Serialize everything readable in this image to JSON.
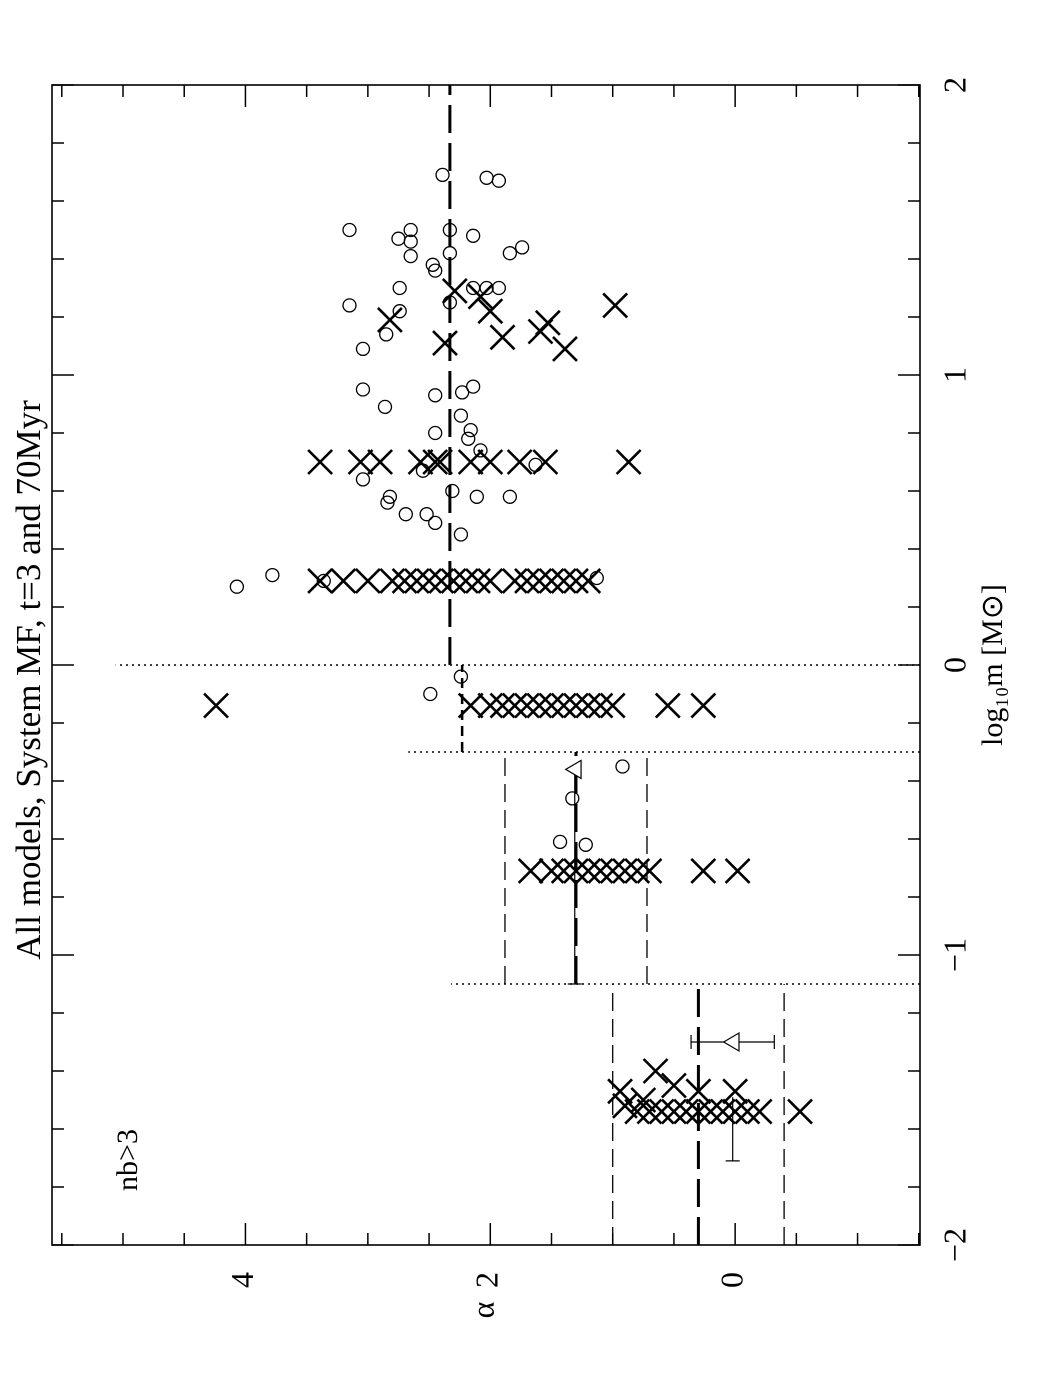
{
  "chart_data": {
    "type": "scatter",
    "title": "All models, System MF, t=3 and 70Myr",
    "x_label": "log₁₀m [M⊙]",
    "y_label": "α",
    "annotation": "nb>3",
    "rotated": true,
    "xlim": [
      -2,
      2
    ],
    "ylim": [
      -1.51,
      5.58
    ],
    "xticks": [
      {
        "value": -2,
        "label": "−2"
      },
      {
        "value": -1,
        "label": "−1"
      },
      0,
      1,
      2
    ],
    "yticks": [
      0,
      2,
      4
    ],
    "xminorticks": [
      -1.8,
      -1.6,
      -1.4,
      -1.2,
      -0.8,
      -0.6,
      -0.4,
      -0.2,
      0.2,
      0.4,
      0.6,
      0.8,
      1.2,
      1.4,
      1.6,
      1.8
    ],
    "yminorticks": [
      -1.5,
      -1,
      -0.5,
      0.5,
      1,
      1.5,
      2.5,
      3,
      3.5,
      4.5,
      5,
      5.5
    ],
    "series": [
      {
        "marker": "x",
        "color": "#000000",
        "x": [
          -1.47,
          -1.4,
          -1.45,
          -1.47,
          -1.47,
          -1.52,
          -1.5,
          -1.54,
          -1.54,
          -1.54,
          -1.54,
          -1.54,
          -1.54,
          -1.54,
          -1.54,
          -1.54,
          -1.54,
          -1.54,
          -1.54,
          -0.71,
          -0.71,
          -0.71,
          -0.71,
          -0.71,
          -0.71,
          -0.71,
          -0.71,
          -0.71,
          -0.71,
          -0.71,
          -0.71,
          -0.14,
          -0.14,
          -0.14,
          -0.14,
          -0.14,
          -0.14,
          -0.14,
          -0.14,
          -0.14,
          -0.14,
          -0.14,
          -0.14,
          -0.14,
          -0.14,
          -0.14,
          0.29,
          0.29,
          0.29,
          0.29,
          0.29,
          0.29,
          0.29,
          0.29,
          0.29,
          0.29,
          0.29,
          0.29,
          0.29,
          0.29,
          0.29,
          0.29,
          0.29,
          0.29,
          0.29,
          0.7,
          0.7,
          0.7,
          0.7,
          0.7,
          0.7,
          0.7,
          0.7,
          0.7,
          0.7,
          0.7,
          1.19,
          1.11,
          1.27,
          1.22,
          1.13,
          1.18,
          1.15,
          1.09,
          1.24,
          1.29
        ],
        "values": [
          0.94,
          0.65,
          0.5,
          0.3,
          0,
          0.9,
          0.75,
          0.8,
          0.7,
          0.6,
          0.5,
          0.4,
          0.3,
          0.2,
          0.1,
          0,
          -0.1,
          -0.2,
          -0.53,
          1.67,
          1.5,
          1.4,
          1.3,
          1.2,
          1.1,
          1,
          0.9,
          0.8,
          0.7,
          0.26,
          -0.02,
          4.24,
          2.16,
          2,
          1.9,
          1.8,
          1.7,
          1.6,
          1.5,
          1.4,
          1.3,
          1.2,
          1.1,
          1,
          0.55,
          0.26,
          3.39,
          3.2,
          3,
          2.8,
          2.7,
          2.6,
          2.5,
          2.4,
          2.3,
          2.2,
          2.1,
          2,
          1.8,
          1.7,
          1.6,
          1.5,
          1.4,
          1.3,
          1.2,
          3.39,
          3.06,
          2.9,
          2.57,
          2.45,
          2.41,
          2.16,
          2,
          1.76,
          1.55,
          0.87,
          2.82,
          2.37,
          2.08,
          2,
          1.9,
          1.53,
          1.59,
          1.39,
          0.98,
          2.29
        ]
      },
      {
        "marker": "o",
        "color": "#000000",
        "x": [
          0.27,
          0.31,
          0.29,
          0.3,
          -0.1,
          -0.04,
          -0.35,
          -0.46,
          -0.61,
          -0.62,
          0.64,
          0.56,
          0.58,
          0.52,
          0.52,
          0.49,
          0.45,
          0.6,
          0.58,
          0.58,
          0.67,
          0.8,
          0.78,
          0.81,
          0.86,
          0.74,
          0.69,
          0.93,
          0.94,
          0.96,
          0.89,
          0.95,
          1.09,
          1.14,
          1.24,
          1.22,
          1.3,
          1.36,
          1.38,
          1.25,
          1.42,
          1.5,
          1.41,
          1.46,
          1.47,
          1.5,
          1.5,
          1.3,
          1.3,
          1.3,
          1.48,
          1.42,
          1.44,
          1.68,
          1.67,
          1.69
        ],
        "values": [
          4.07,
          3.78,
          3.36,
          1.13,
          2.49,
          2.24,
          0.92,
          1.33,
          1.43,
          1.22,
          3.04,
          2.84,
          2.82,
          2.69,
          2.52,
          2.45,
          2.24,
          2.31,
          2.11,
          1.84,
          2.55,
          2.45,
          2.18,
          2.16,
          2.24,
          2.08,
          1.63,
          2.45,
          2.23,
          2.14,
          2.86,
          3.04,
          3.04,
          2.85,
          3.15,
          2.74,
          2.74,
          2.45,
          2.47,
          2.33,
          2.33,
          2.33,
          2.65,
          2.65,
          2.75,
          2.65,
          3.15,
          2.14,
          2.03,
          1.93,
          2.14,
          1.84,
          1.74,
          2.03,
          1.93,
          2.39
        ]
      }
    ],
    "lines": [
      {
        "style": "long-dash",
        "x": [
          -2,
          -1.1
        ],
        "values": [
          0.3,
          0.3
        ]
      },
      {
        "style": "dash",
        "x": [
          -2,
          -1.1
        ],
        "values": [
          1.0,
          1.0
        ]
      },
      {
        "style": "dash",
        "x": [
          -2,
          -1.1
        ],
        "values": [
          -0.4,
          -0.4
        ]
      },
      {
        "style": "long-dash",
        "x": [
          -1.1,
          -0.3
        ],
        "values": [
          1.3,
          1.3
        ]
      },
      {
        "style": "dash",
        "x": [
          -1.1,
          -0.3
        ],
        "values": [
          1.88,
          1.88
        ]
      },
      {
        "style": "dash",
        "x": [
          -1.1,
          -0.3
        ],
        "values": [
          0.72,
          0.72
        ]
      },
      {
        "style": "short-dash",
        "x": [
          -0.3,
          0
        ],
        "values": [
          2.23,
          2.23
        ]
      },
      {
        "style": "long-dash",
        "x": [
          0,
          2
        ],
        "values": [
          2.33,
          2.33
        ]
      },
      {
        "style": "dotted",
        "x": [
          -1.1,
          -1.1
        ],
        "values": [
          -1.51,
          2.32
        ]
      },
      {
        "style": "dotted",
        "x": [
          -0.3,
          -0.3
        ],
        "values": [
          -1.51,
          2.67
        ]
      },
      {
        "style": "dotted",
        "x": [
          0,
          0
        ],
        "values": [
          -1.51,
          5.06
        ]
      }
    ],
    "errorbars": [
      {
        "x": -1.3,
        "value": 0.02,
        "error": 0.34,
        "x_range": [
          -1.71,
          -1.49
        ]
      },
      {
        "x": -0.36,
        "value": 1.31,
        "x_range": [
          -1.1,
          -0.36
        ]
      }
    ]
  }
}
